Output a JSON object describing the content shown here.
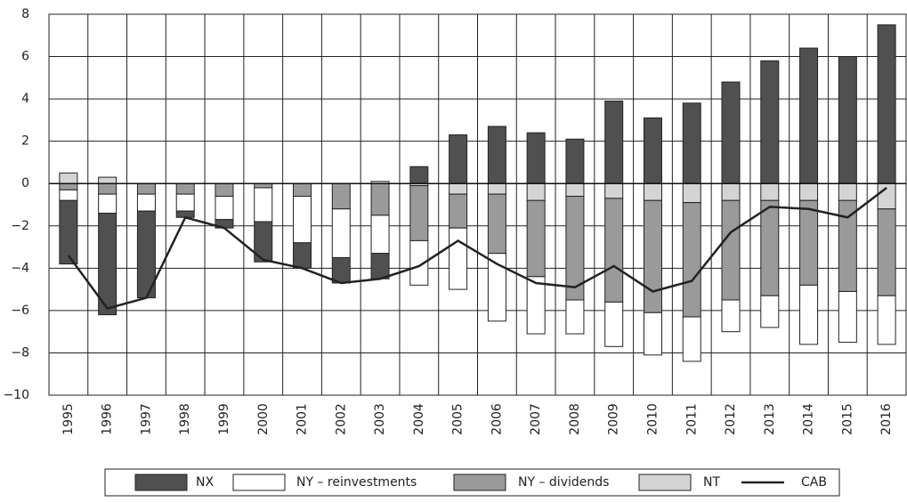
{
  "chart_data": {
    "type": "bar",
    "stacked": true,
    "categories": [
      "1995",
      "1996",
      "1997",
      "1998",
      "1999",
      "2000",
      "2001",
      "2002",
      "2003",
      "2004",
      "2005",
      "2006",
      "2007",
      "2008",
      "2009",
      "2010",
      "2011",
      "2012",
      "2013",
      "2014",
      "2015",
      "2016"
    ],
    "series": [
      {
        "name": "NX",
        "color": "#505050",
        "values": [
          -3.0,
          -4.8,
          -4.1,
          -0.3,
          -0.4,
          -1.9,
          -1.2,
          -1.2,
          -1.2,
          0.8,
          2.3,
          2.7,
          2.4,
          2.1,
          3.9,
          3.1,
          3.8,
          4.8,
          5.8,
          6.4,
          6.0,
          7.5
        ]
      },
      {
        "name": "NY – reinvestments",
        "color": "#ffffff",
        "values": [
          -0.5,
          -0.9,
          -0.8,
          -0.8,
          -1.1,
          -1.6,
          -2.2,
          -2.3,
          -1.8,
          -2.1,
          -2.9,
          -3.2,
          -2.7,
          -1.6,
          -2.1,
          -2.0,
          -2.1,
          -1.5,
          -1.5,
          -2.8,
          -2.4,
          -2.3
        ]
      },
      {
        "name": "NY – dividends",
        "color": "#9a9a9a",
        "values": [
          -0.3,
          -0.5,
          -0.5,
          -0.5,
          -0.6,
          -0.2,
          -0.6,
          -1.2,
          -1.5,
          -2.6,
          -1.6,
          -2.8,
          -3.6,
          -4.9,
          -4.9,
          -5.3,
          -5.4,
          -4.7,
          -4.5,
          -4.0,
          -4.3,
          -4.1
        ]
      },
      {
        "name": "NT",
        "color": "#d4d4d4",
        "values": [
          0.5,
          0.3,
          0,
          0,
          0,
          0,
          0,
          0,
          0.1,
          -0.1,
          -0.5,
          -0.5,
          -0.8,
          -0.6,
          -0.7,
          -0.8,
          -0.9,
          -0.8,
          -0.8,
          -0.8,
          -0.8,
          -1.2
        ]
      },
      {
        "name": "CAB",
        "type": "line",
        "color": "#222222",
        "values": [
          -3.4,
          -5.9,
          -5.4,
          -1.6,
          -2.1,
          -3.6,
          -4.0,
          -4.7,
          -4.5,
          -3.9,
          -2.7,
          -3.8,
          -4.7,
          -4.9,
          -3.9,
          -5.1,
          -4.6,
          -2.3,
          -1.1,
          -1.2,
          -1.6,
          -0.2
        ]
      }
    ],
    "ylim": [
      -10,
      8
    ],
    "yticks": [
      {
        "value": -10,
        "label": "−10"
      },
      {
        "value": -8,
        "label": "−8"
      },
      {
        "value": -6,
        "label": "−6"
      },
      {
        "value": -4,
        "label": "−4"
      },
      {
        "value": -2,
        "label": "−2"
      },
      0,
      2,
      4,
      6,
      8
    ],
    "grid": true,
    "legend": "bottom"
  }
}
